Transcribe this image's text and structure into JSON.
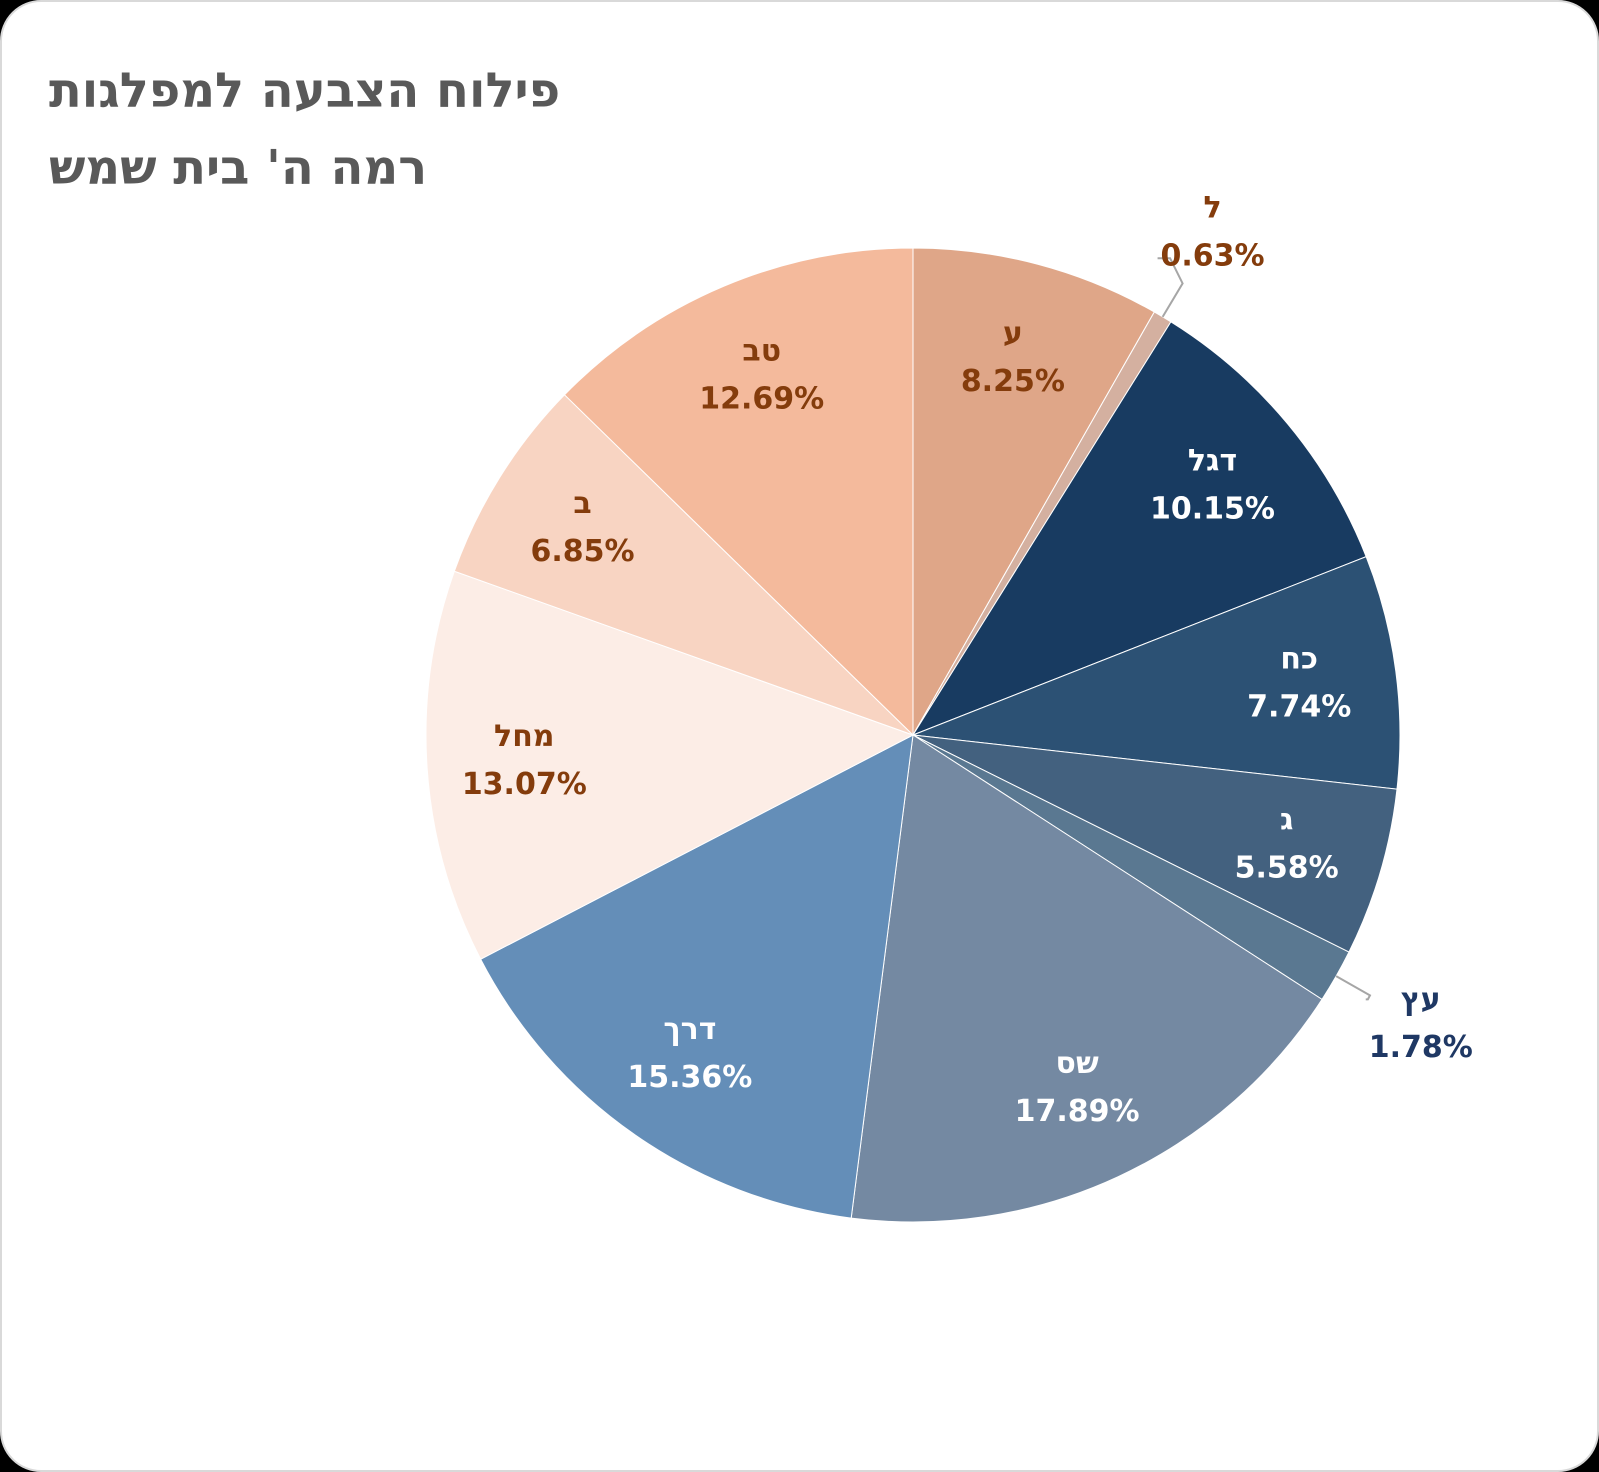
{
  "chart_data": {
    "type": "pie",
    "title": "פילוח הצבעה למפלגות",
    "subtitle": "רמה ה' בית שמש",
    "categories": [
      "ע",
      "ל",
      "דגל",
      "כח",
      "ג",
      "עץ",
      "שס",
      "דרך",
      "מחל",
      "ב",
      "טב"
    ],
    "values": [
      8.25,
      0.63,
      10.15,
      7.74,
      5.58,
      1.78,
      17.89,
      15.36,
      13.07,
      6.85,
      12.69
    ],
    "value_labels": [
      "8.25%",
      "0.63%",
      "10.15%",
      "7.74%",
      "5.58%",
      "1.78%",
      "17.89%",
      "15.36%",
      "13.07%",
      "6.85%",
      "12.69%"
    ],
    "colors": [
      "#dfa688",
      "#d4b0a0",
      "#183b61",
      "#2c5174",
      "#43617f",
      "#5a7891",
      "#7489a2",
      "#648eb8",
      "#fcede6",
      "#f8d4c2",
      "#f4ba9c"
    ]
  }
}
